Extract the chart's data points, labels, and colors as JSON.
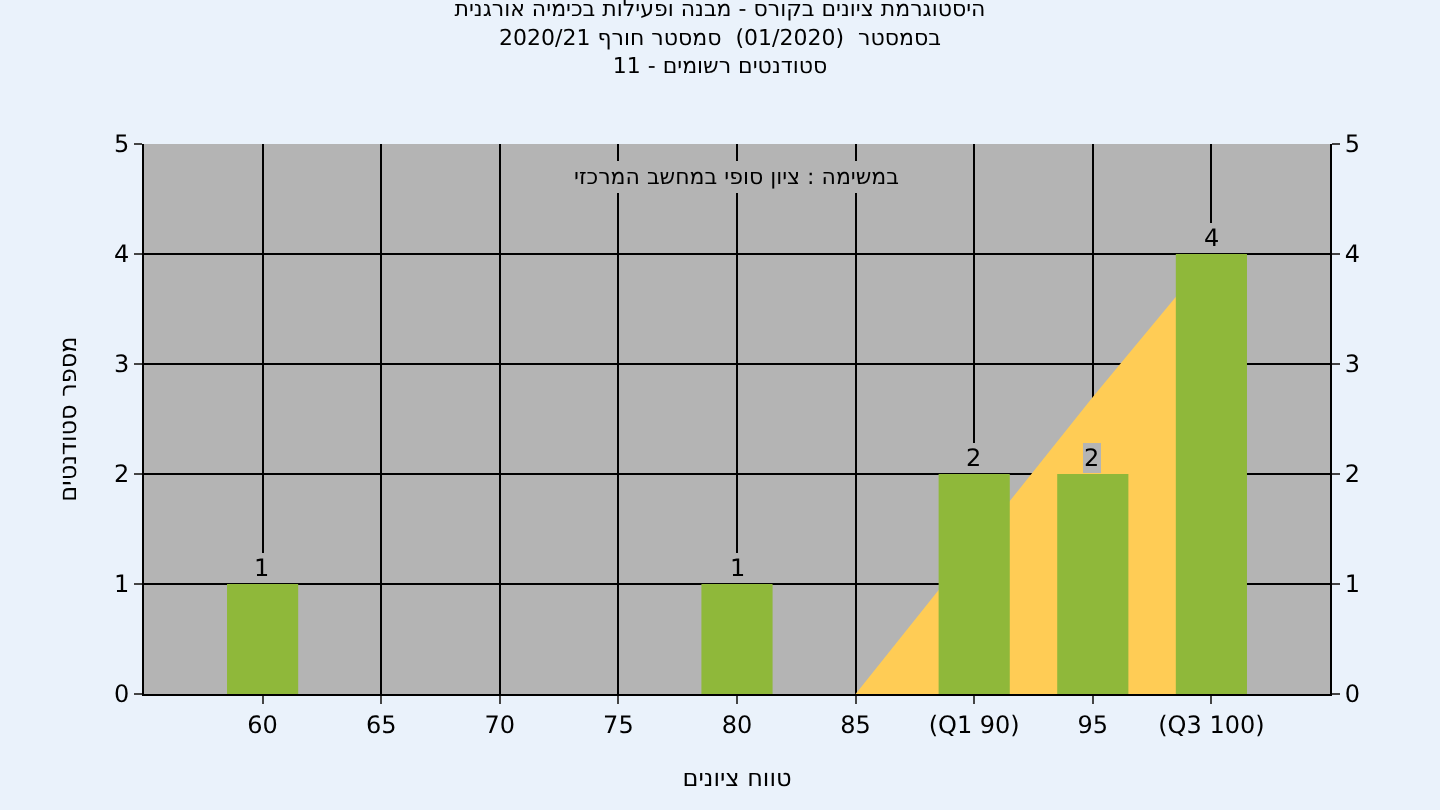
{
  "chart_data": {
    "type": "bar",
    "title": "היסטוגרמת ציונים בקורס - מבנה ופעילות בכימיה אורגנית\nבסמסטר  (01/2020)  סמסטר חורף 2020/21\nסטודנטים רשומים - 11",
    "xlabel": "טווח ציונים",
    "ylabel": "מספר סטודנטים",
    "categories": [
      "60",
      "65",
      "70",
      "75",
      "80",
      "85",
      "(Q1 90)",
      "95",
      "(Q3 100)"
    ],
    "series": [
      {
        "type": "area",
        "color": "#ffcc55",
        "values": [
          null,
          null,
          null,
          null,
          null,
          0,
          null,
          2.7,
          4
        ]
      },
      {
        "color": "#8fb83a",
        "values": [
          1,
          0,
          0,
          0,
          1,
          0,
          2,
          2,
          4
        ],
        "value_labels": [
          "1",
          null,
          null,
          null,
          "1",
          null,
          "2",
          "2",
          "4"
        ]
      }
    ],
    "ylim": [
      0,
      5
    ],
    "yticks": [
      0,
      1,
      2,
      3,
      4,
      5
    ],
    "y2lim": [
      0,
      5
    ],
    "y2ticks": [
      0,
      1,
      2,
      3,
      4,
      5
    ],
    "annotations": [
      "במשימה : ציון סופי במחשב המרכזי"
    ],
    "grid": true
  }
}
